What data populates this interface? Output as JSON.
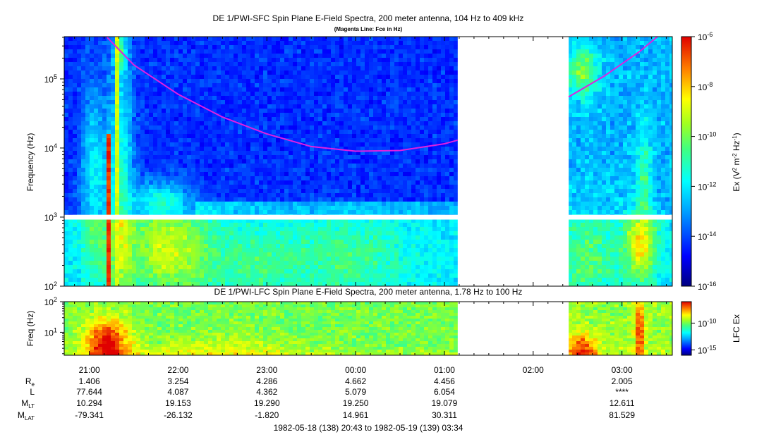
{
  "chart_data": [
    {
      "type": "heatmap",
      "title": "DE 1/PWI-SFC  Spin Plane E-Field Spectra, 200 meter antenna, 104 Hz to 409 kHz",
      "subtitle": "(Magenta Line: Fce in Hz)",
      "ylabel": "Frequency (Hz)",
      "yscale": "log",
      "ylim": [
        100,
        409000
      ],
      "yticks": [
        {
          "value": 100,
          "base": "10",
          "exp": "2"
        },
        {
          "value": 1000,
          "base": "10",
          "exp": "3"
        },
        {
          "value": 10000,
          "base": "10",
          "exp": "4"
        },
        {
          "value": 100000,
          "base": "10",
          "exp": "5"
        }
      ],
      "x_range_hours": [
        20.717,
        27.567
      ],
      "data_gap_hours": [
        25.15,
        26.4
      ],
      "band_gap_hz": [
        920,
        1080
      ],
      "fce_line": {
        "color": "#e020e0",
        "segments": [
          [
            [
              21.2,
              400000
            ],
            [
              21.5,
              160000
            ],
            [
              22.0,
              60000
            ],
            [
              22.5,
              28000
            ],
            [
              23.0,
              16000
            ],
            [
              23.5,
              10500
            ],
            [
              24.0,
              9000
            ],
            [
              24.5,
              9200
            ],
            [
              25.0,
              11500
            ],
            [
              25.15,
              13000
            ]
          ],
          [
            [
              26.4,
              55000
            ],
            [
              26.8,
              110000
            ],
            [
              27.2,
              250000
            ],
            [
              27.4,
              409000
            ]
          ]
        ]
      },
      "colorbar": {
        "label_base": "Ex (V",
        "label_sup1": "2",
        "label_mid": " m",
        "label_sup2": "-2",
        "label_mid2": " Hz",
        "label_sup3": "-1",
        "label_end": ")",
        "ticks": [
          {
            "value": -6,
            "base": "10",
            "exp": "-6"
          },
          {
            "value": -8,
            "base": "10",
            "exp": "-8"
          },
          {
            "value": -10,
            "base": "10",
            "exp": "-10"
          },
          {
            "value": -12,
            "base": "10",
            "exp": "-12"
          },
          {
            "value": -14,
            "base": "10",
            "exp": "-14"
          },
          {
            "value": -16,
            "base": "10",
            "exp": "-16"
          }
        ],
        "range_log": [
          -16,
          -6
        ]
      }
    },
    {
      "type": "heatmap",
      "title": "DE 1/PWI-LFC  Spin Plane E-Field Spectra, 200 meter antenna, 1.78 Hz to 100 Hz",
      "ylabel": "Freq (Hz)",
      "yscale": "log",
      "ylim": [
        1.78,
        100
      ],
      "yticks": [
        {
          "value": 10,
          "base": "10",
          "exp": "1"
        },
        {
          "value": 100,
          "base": "10",
          "exp": "2"
        }
      ],
      "x_range_hours": [
        20.717,
        27.567
      ],
      "data_gap_hours": [
        25.15,
        26.4
      ],
      "colorbar": {
        "label": "LFC Ex",
        "ticks": [
          {
            "value": -10,
            "base": "10",
            "exp": "-10"
          },
          {
            "value": -15,
            "base": "10",
            "exp": "-15"
          }
        ],
        "range_log": [
          -16,
          -6
        ]
      }
    }
  ],
  "time_axis": {
    "ticks": [
      {
        "hour": 21,
        "label": "21:00"
      },
      {
        "hour": 22,
        "label": "22:00"
      },
      {
        "hour": 23,
        "label": "23:00"
      },
      {
        "hour": 24,
        "label": "00:00"
      },
      {
        "hour": 25,
        "label": "01:00"
      },
      {
        "hour": 26,
        "label": "02:00"
      },
      {
        "hour": 27,
        "label": "03:00"
      }
    ],
    "range_label": "1982-05-18 (138) 20:43 to 1982-05-19 (139) 03:34"
  },
  "ephemeris": {
    "rows": [
      {
        "name": "R",
        "sub": "e",
        "values": [
          "1.406",
          "3.254",
          "4.286",
          "4.662",
          "4.456",
          "",
          "2.005"
        ]
      },
      {
        "name": "L",
        "sub": "",
        "values": [
          "77.644",
          "4.087",
          "4.362",
          "5.079",
          "6.054",
          "",
          "****"
        ]
      },
      {
        "name": "M",
        "sub": "LT",
        "values": [
          "10.294",
          "19.153",
          "19.290",
          "19.250",
          "19.079",
          "",
          "12.611"
        ]
      },
      {
        "name": "M",
        "sub": "LAT",
        "values": [
          "-79.341",
          "-26.132",
          "-1.820",
          "14.961",
          "30.311",
          "",
          "81.529"
        ]
      }
    ]
  }
}
